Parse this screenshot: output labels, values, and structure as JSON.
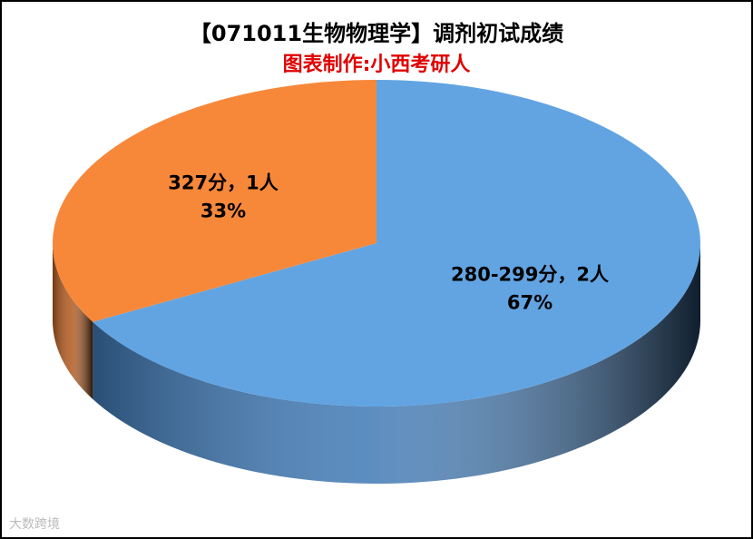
{
  "chart_data": {
    "type": "pie",
    "title": "【071011生物物理学】调剂初试成绩",
    "subtitle": "图表制作:小西考研人",
    "categories": [
      "280-299分，2人",
      "327分，1人"
    ],
    "values": [
      67,
      33
    ],
    "value_labels": [
      "67%",
      "33%"
    ],
    "colors": [
      "#62a4e2",
      "#f7883a"
    ],
    "side_colors": [
      "#3f79b5",
      "#b0571c"
    ],
    "start_angle": 0,
    "direction": "clockwise"
  },
  "watermark": "大数跨境"
}
